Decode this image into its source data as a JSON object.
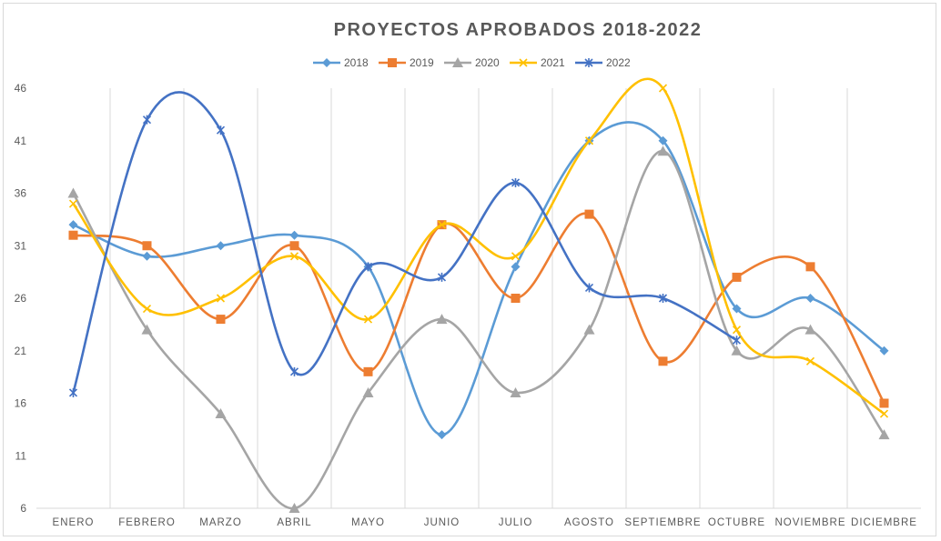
{
  "chart_data": {
    "type": "line",
    "title": "PROYECTOS APROBADOS 2018-2022",
    "xlabel": "",
    "ylabel": "",
    "categories": [
      "ENERO",
      "FEBRERO",
      "MARZO",
      "ABRIL",
      "MAYO",
      "JUNIO",
      "JULIO",
      "AGOSTO",
      "SEPTIEMBRE",
      "OCTUBRE",
      "NOVIEMBRE",
      "DICIEMBRE"
    ],
    "ylim": [
      6,
      46
    ],
    "yticks": [
      6,
      11,
      16,
      21,
      26,
      31,
      36,
      41,
      46
    ],
    "grid": "vertical",
    "legend_position": "top",
    "series": [
      {
        "name": "2018",
        "color": "#5B9BD5",
        "marker": "diamond",
        "values": [
          33,
          30,
          31,
          32,
          29,
          13,
          29,
          41,
          41,
          25,
          26,
          21
        ]
      },
      {
        "name": "2019",
        "color": "#ED7D31",
        "marker": "square",
        "values": [
          32,
          31,
          24,
          31,
          19,
          33,
          26,
          34,
          20,
          28,
          29,
          16
        ]
      },
      {
        "name": "2020",
        "color": "#A5A5A5",
        "marker": "triangle",
        "values": [
          36,
          23,
          15,
          6,
          17,
          24,
          17,
          23,
          40,
          21,
          23,
          13
        ]
      },
      {
        "name": "2021",
        "color": "#FFC000",
        "marker": "x",
        "values": [
          35,
          25,
          26,
          30,
          24,
          33,
          30,
          41,
          46,
          23,
          20,
          15
        ]
      },
      {
        "name": "2022",
        "color": "#4472C4",
        "marker": "star",
        "values": [
          17,
          43,
          42,
          19,
          29,
          28,
          37,
          27,
          26,
          22,
          null,
          null
        ]
      }
    ]
  }
}
